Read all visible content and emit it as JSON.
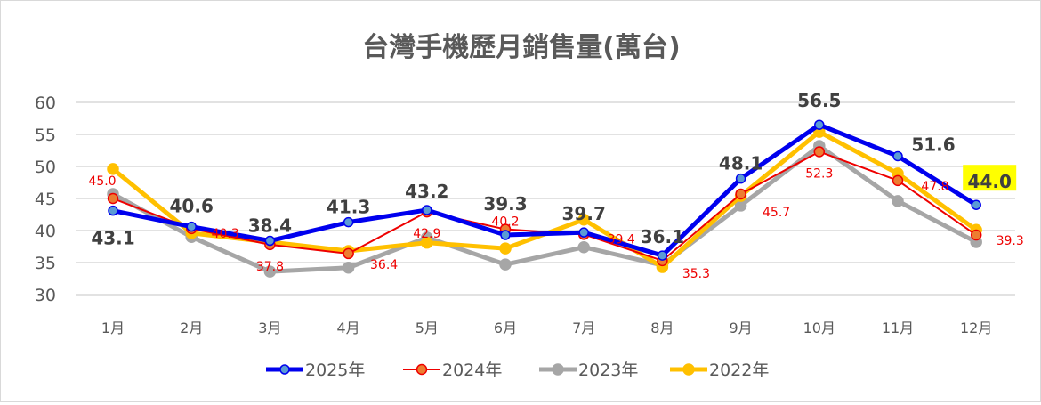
{
  "chart_data": {
    "type": "line",
    "title": "台灣手機歷月銷售量(萬台)",
    "categories": [
      "1月",
      "2月",
      "3月",
      "4月",
      "5月",
      "6月",
      "7月",
      "8月",
      "9月",
      "10月",
      "11月",
      "12月"
    ],
    "ylim": [
      30,
      60
    ],
    "yticks": [
      30,
      35,
      40,
      45,
      50,
      55,
      60
    ],
    "grid": true,
    "legend_position": "bottom",
    "series": [
      {
        "name": "2025年",
        "color": "#0000ee",
        "marker_color": "#5b9bd5",
        "labeled": true,
        "values": [
          43.1,
          40.6,
          38.4,
          41.3,
          43.2,
          39.3,
          39.7,
          36.1,
          48.1,
          56.5,
          51.6,
          44.0
        ],
        "highlight_label": "44.0",
        "highlight_color": "#ffff00"
      },
      {
        "name": "2024年",
        "color": "#ee0000",
        "marker_color": "#ed7d31",
        "labeled": true,
        "values": [
          45.0,
          40.3,
          37.8,
          36.4,
          42.9,
          40.2,
          39.4,
          35.3,
          45.7,
          52.3,
          47.8,
          39.3
        ]
      },
      {
        "name": "2023年",
        "color": "#a6a6a6",
        "marker_color": "#a6a6a6",
        "labeled": false,
        "values": [
          45.7,
          39.0,
          33.6,
          34.2,
          38.9,
          34.7,
          37.4,
          34.6,
          43.9,
          53.2,
          44.6,
          38.2
        ]
      },
      {
        "name": "2022年",
        "color": "#ffc000",
        "marker_color": "#ffc000",
        "labeled": false,
        "values": [
          49.6,
          39.6,
          38.2,
          36.8,
          38.1,
          37.2,
          41.7,
          34.3,
          45.4,
          55.4,
          48.9,
          40.1
        ]
      }
    ]
  }
}
